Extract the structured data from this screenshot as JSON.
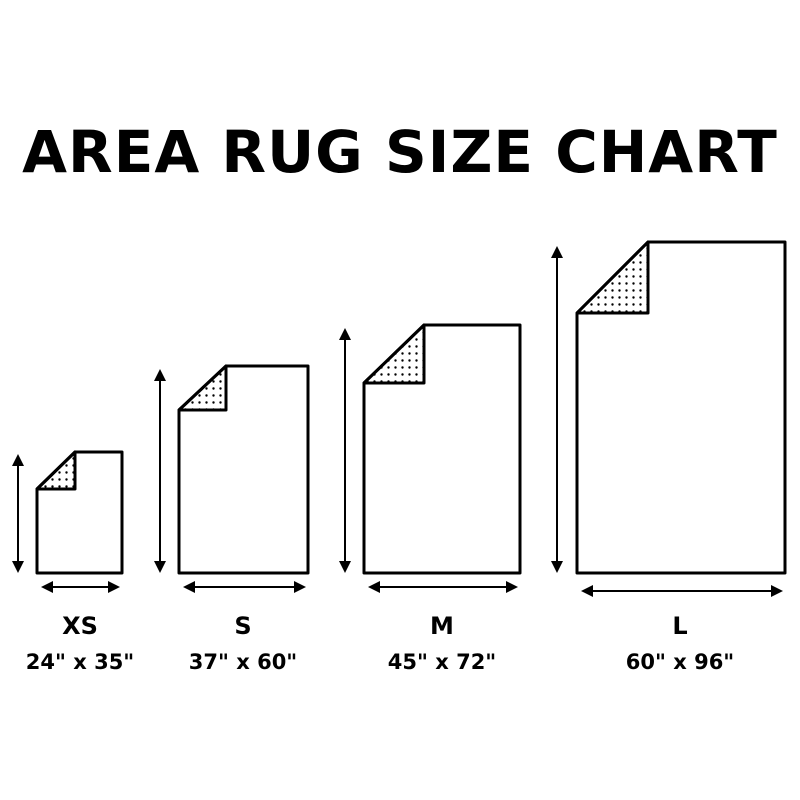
{
  "title": "AREA RUG SIZE CHART",
  "colors": {
    "ink": "#000000",
    "background": "#ffffff"
  },
  "rugs": [
    {
      "size": "XS",
      "dimensions": "24\" x 35\""
    },
    {
      "size": "S",
      "dimensions": "37\" x 60\""
    },
    {
      "size": "M",
      "dimensions": "45\" x 72\""
    },
    {
      "size": "L",
      "dimensions": "60\" x 96\""
    }
  ]
}
